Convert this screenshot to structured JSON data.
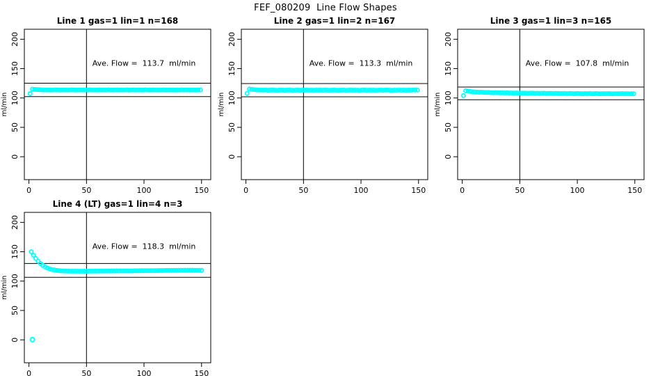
{
  "figure": {
    "title": "FEF_080209  Line Flow Shapes",
    "background": "#FFFFFF",
    "point_color": "#00FFFF",
    "line_color": "#000000"
  },
  "chart_data": [
    {
      "type": "scatter",
      "title": "Line 1 gas=1 lin=1 n=168",
      "annotation": "Ave. Flow =  113.7  ml/min",
      "annotation_xy": [
        100,
        155
      ],
      "ave_flow_ml_min": 113.7,
      "n": 168,
      "xlabel": "",
      "ylabel": "ml/min",
      "x_ticks": [
        0,
        50,
        100,
        150
      ],
      "y_ticks": [
        0,
        50,
        100,
        150,
        200
      ],
      "xlim": [
        -4,
        158
      ],
      "ylim": [
        -39,
        217
      ],
      "grid": false,
      "vline_x": 50,
      "hlines": [
        125.1,
        102.3
      ],
      "series": {
        "name": "flow",
        "x_start": 1,
        "x_step": 2,
        "y": [
          107.5,
          114.9,
          114.6,
          114.4,
          114.1,
          113.9,
          113.8,
          113.6,
          113.8,
          113.5,
          113.7,
          113.9,
          113.6,
          113.4,
          113.7,
          113.8,
          113.5,
          113.6,
          113.9,
          113.7,
          113.4,
          113.6,
          113.8,
          113.5,
          113.7,
          113.6,
          113.9,
          113.5,
          113.7,
          113.4,
          113.8,
          113.6,
          113.7,
          113.5,
          113.9,
          113.6,
          113.4,
          113.7,
          113.8,
          113.5,
          113.6,
          113.7,
          113.9,
          113.4,
          113.6,
          113.8,
          113.5,
          113.7,
          113.6,
          113.4,
          113.9,
          113.7,
          113.5,
          113.8,
          113.6,
          113.7,
          113.4,
          113.6,
          113.9,
          113.5,
          113.7,
          113.8,
          113.6,
          113.4,
          113.7,
          113.5,
          113.9,
          113.6,
          113.8,
          113.5,
          113.7,
          113.6,
          113.4,
          113.8,
          113.6
        ]
      },
      "outliers": []
    },
    {
      "type": "scatter",
      "title": "Line 2 gas=1 lin=2 n=167",
      "annotation": "Ave. Flow =  113.3  ml/min",
      "annotation_xy": [
        100,
        155
      ],
      "ave_flow_ml_min": 113.3,
      "n": 167,
      "xlabel": "",
      "ylabel": "ml/min",
      "x_ticks": [
        0,
        50,
        100,
        150
      ],
      "y_ticks": [
        0,
        50,
        100,
        150,
        200
      ],
      "xlim": [
        -4,
        158
      ],
      "ylim": [
        -39,
        217
      ],
      "grid": false,
      "vline_x": 50,
      "hlines": [
        124.6,
        102.0
      ],
      "series": {
        "name": "flow",
        "x_start": 1,
        "x_step": 2,
        "y": [
          108.0,
          115.2,
          114.6,
          114.2,
          113.9,
          113.6,
          113.5,
          113.3,
          113.5,
          113.2,
          113.4,
          113.6,
          113.3,
          113.1,
          113.4,
          113.5,
          113.2,
          113.3,
          113.6,
          113.4,
          113.1,
          113.3,
          113.5,
          113.2,
          113.4,
          113.3,
          113.6,
          113.2,
          113.4,
          113.1,
          113.5,
          113.3,
          113.4,
          113.2,
          113.6,
          113.3,
          113.1,
          113.4,
          113.5,
          113.2,
          113.3,
          113.4,
          113.6,
          113.1,
          113.3,
          113.5,
          113.2,
          113.4,
          113.3,
          113.1,
          113.6,
          113.4,
          113.2,
          113.5,
          113.3,
          113.4,
          113.1,
          113.3,
          113.6,
          113.2,
          113.4,
          113.5,
          113.3,
          113.1,
          113.4,
          113.2,
          113.6,
          113.3,
          113.5,
          113.2,
          113.4,
          113.3,
          113.5,
          113.6,
          113.4
        ]
      },
      "outliers": []
    },
    {
      "type": "scatter",
      "title": "Line 3 gas=1 lin=3 n=165",
      "annotation": "Ave. Flow =  107.8  ml/min",
      "annotation_xy": [
        100,
        155
      ],
      "ave_flow_ml_min": 107.8,
      "n": 165,
      "xlabel": "",
      "ylabel": "ml/min",
      "x_ticks": [
        0,
        50,
        100,
        150
      ],
      "y_ticks": [
        0,
        50,
        100,
        150,
        200
      ],
      "xlim": [
        -4,
        158
      ],
      "ylim": [
        -39,
        217
      ],
      "grid": false,
      "vline_x": 50,
      "hlines": [
        118.6,
        97.0
      ],
      "series": {
        "name": "flow",
        "x_start": 1,
        "x_step": 2,
        "y": [
          104.0,
          112.2,
          111.6,
          111.0,
          110.5,
          110.2,
          109.9,
          109.7,
          109.9,
          109.4,
          109.3,
          109.5,
          109.1,
          108.9,
          109.2,
          109.0,
          108.7,
          108.9,
          108.6,
          108.8,
          108.4,
          108.6,
          108.3,
          108.5,
          108.2,
          108.4,
          108.1,
          108.3,
          108.0,
          108.2,
          108.3,
          107.9,
          108.1,
          107.8,
          108.0,
          108.1,
          107.7,
          107.9,
          108.0,
          107.6,
          107.8,
          107.9,
          107.5,
          107.7,
          107.8,
          107.4,
          107.6,
          107.7,
          107.3,
          107.5,
          107.6,
          107.4,
          107.2,
          107.5,
          107.3,
          107.6,
          107.2,
          107.4,
          107.5,
          107.1,
          107.3,
          107.4,
          107.2,
          107.5,
          107.3,
          107.1,
          107.4,
          107.2,
          107.3,
          107.5,
          107.2,
          107.4,
          107.1,
          107.3,
          107.2
        ]
      },
      "outliers": []
    },
    {
      "type": "scatter",
      "title": "Line 4 (LT) gas=1 lin=4 n=3",
      "annotation": "Ave. Flow =  118.3  ml/min",
      "annotation_xy": [
        100,
        155
      ],
      "ave_flow_ml_min": 118.3,
      "n": 3,
      "xlabel": "",
      "ylabel": "ml/min",
      "x_ticks": [
        0,
        50,
        100,
        150
      ],
      "y_ticks": [
        0,
        50,
        100,
        150,
        200
      ],
      "xlim": [
        -4,
        158
      ],
      "ylim": [
        -39,
        217
      ],
      "grid": false,
      "vline_x": 50,
      "hlines": [
        130.1,
        106.5
      ],
      "series": {
        "name": "flow",
        "x_start": 2,
        "x_step": 2,
        "y": [
          150.0,
          144.0,
          138.5,
          133.8,
          130.0,
          126.8,
          124.3,
          122.3,
          120.8,
          119.7,
          118.9,
          118.3,
          117.9,
          117.6,
          117.3,
          117.1,
          117.0,
          116.9,
          116.9,
          116.8,
          116.8,
          116.8,
          116.9,
          116.9,
          116.9,
          117.0,
          117.0,
          117.0,
          117.1,
          117.1,
          117.1,
          117.2,
          117.2,
          117.2,
          117.3,
          117.3,
          117.3,
          117.4,
          117.4,
          117.4,
          117.4,
          117.5,
          117.5,
          117.5,
          117.5,
          117.6,
          117.6,
          117.6,
          117.7,
          117.7,
          117.7,
          117.8,
          117.8,
          117.8,
          117.9,
          117.9,
          118.0,
          118.0,
          118.1,
          118.1,
          118.2,
          118.2,
          118.3,
          118.3,
          118.4,
          118.4,
          118.4,
          118.5,
          118.5,
          118.5,
          118.5,
          118.4,
          118.4,
          118.3,
          118.3
        ]
      },
      "outliers": [
        [
          3,
          0.5
        ]
      ]
    }
  ]
}
